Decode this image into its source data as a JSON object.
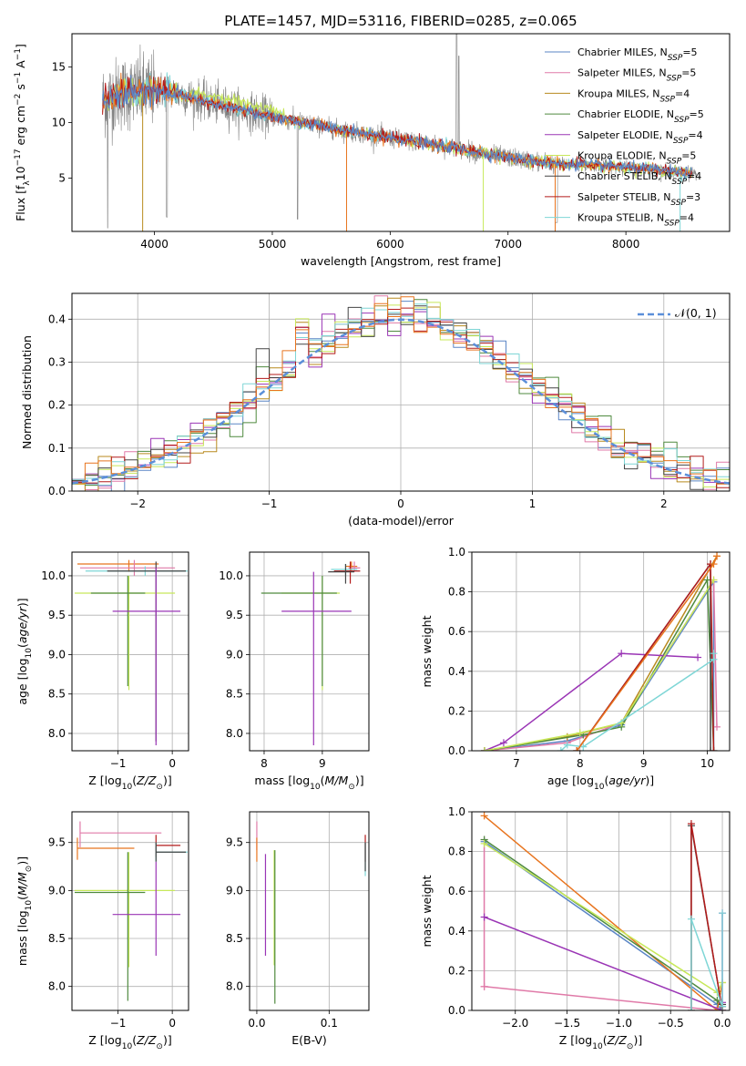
{
  "title": "PLATE=1457, MJD=53116, FIBERID=0285, z=0.065",
  "colors": {
    "Chabrier MILES": "#5b86c6",
    "Salpeter MILES": "#e07aa8",
    "Kroupa MILES": "#b88a1e",
    "Chabrier ELODIE": "#4f8a3f",
    "Salpeter ELODIE": "#9a35b5",
    "Kroupa ELODIE": "#c7e85a",
    "Chabrier STELIB": "#444444",
    "Salpeter STELIB": "#b31b1b",
    "Kroupa STELIB": "#7ed6d6",
    "orange": "#e8741e",
    "data": "#808080",
    "normal": "#5b8fd9"
  },
  "chart_data": [
    {
      "id": "spectrum",
      "type": "line",
      "xlabel": "wavelength [Angstrom, rest frame]",
      "ylabel": "Flux [f_λ10^-17 erg cm^-2 s^-1 A^-1]",
      "xlim": [
        3300,
        8880
      ],
      "ylim": [
        0.2,
        18
      ],
      "xticks": [
        4000,
        5000,
        6000,
        7000,
        8000
      ],
      "yticks": [
        5,
        10,
        15
      ],
      "grid": false,
      "legend": "top-right",
      "legend_entries": [
        {
          "key": "Chabrier MILES",
          "label": "Chabrier MILES, N",
          "sub": "SSP",
          "tail": "=5"
        },
        {
          "key": "Salpeter MILES",
          "label": "Salpeter MILES, N",
          "sub": "SSP",
          "tail": "=5"
        },
        {
          "key": "Kroupa MILES",
          "label": "Kroupa MILES, N",
          "sub": "SSP",
          "tail": "=4"
        },
        {
          "key": "Chabrier ELODIE",
          "label": "Chabrier ELODIE, N",
          "sub": "SSP",
          "tail": "=5"
        },
        {
          "key": "Salpeter ELODIE",
          "label": "Salpeter ELODIE, N",
          "sub": "SSP",
          "tail": "=4"
        },
        {
          "key": "Kroupa ELODIE",
          "label": "Kroupa ELODIE, N",
          "sub": "SSP",
          "tail": "=5"
        },
        {
          "key": "Chabrier STELIB",
          "label": "Chabrier STELIB, N",
          "sub": "SSP",
          "tail": "=4"
        },
        {
          "key": "Salpeter STELIB",
          "label": "Salpeter STELIB, N",
          "sub": "SSP",
          "tail": "=3"
        },
        {
          "key": "Kroupa STELIB",
          "label": "Kroupa STELIB, N",
          "sub": "SSP",
          "tail": "=4"
        }
      ],
      "continuum": [
        [
          3560,
          12.0
        ],
        [
          3700,
          12.6
        ],
        [
          3850,
          12.8
        ],
        [
          4000,
          12.9
        ],
        [
          4100,
          12.9
        ],
        [
          4300,
          12.3
        ],
        [
          4500,
          11.7
        ],
        [
          4700,
          11.3
        ],
        [
          5000,
          10.5
        ],
        [
          5300,
          9.9
        ],
        [
          5600,
          9.3
        ],
        [
          5900,
          8.8
        ],
        [
          6200,
          8.3
        ],
        [
          6500,
          7.8
        ],
        [
          6800,
          7.2
        ],
        [
          7100,
          6.7
        ],
        [
          7400,
          6.3
        ],
        [
          7700,
          6.2
        ],
        [
          8000,
          6.0
        ],
        [
          8300,
          5.7
        ],
        [
          8600,
          5.4
        ]
      ]
    },
    {
      "id": "residuals",
      "type": "line",
      "xlabel": "(data-model)/error",
      "ylabel": "Normed distribution",
      "xlim": [
        -2.5,
        2.5
      ],
      "ylim": [
        0,
        0.46
      ],
      "xticks": [
        -2,
        -1,
        0,
        1,
        2
      ],
      "yticks": [
        0.0,
        0.1,
        0.2,
        0.3,
        0.4
      ],
      "grid": true,
      "legend": "top-right",
      "legend_label": "𝒩(0, 1)",
      "series": [
        {
          "name": "normal",
          "function": "N(0,1)"
        }
      ]
    },
    {
      "id": "age-Z",
      "type": "scatter",
      "xlabel": "Z [log10(Z/Z⊙)]",
      "ylabel": "age [log10(age/yr)]",
      "xlim": [
        -1.85,
        0.3
      ],
      "ylim": [
        7.78,
        10.3
      ],
      "xticks": [
        -1,
        0
      ],
      "yticks": [
        8.0,
        8.5,
        9.0,
        9.5,
        10.0
      ],
      "grid": true,
      "errorbars": [
        {
          "c": "orange",
          "x": -0.8,
          "y": 10.15,
          "xl": -1.75,
          "xh": -0.25,
          "yl": 10.05,
          "yh": 10.2
        },
        {
          "c": "Salpeter MILES",
          "x": -0.7,
          "y": 10.1,
          "xl": -1.7,
          "xh": 0.05,
          "yl": 10.0,
          "yh": 10.2
        },
        {
          "c": "Kroupa STELIB",
          "x": -0.5,
          "y": 10.06,
          "xl": -1.6,
          "xh": 0.28,
          "yl": 10.0,
          "yh": 10.12
        },
        {
          "c": "Chabrier STELIB",
          "x": -0.3,
          "y": 10.06,
          "xl": -1.2,
          "xh": 0.25,
          "yl": 7.9,
          "yh": 10.18
        },
        {
          "c": "Kroupa ELODIE",
          "x": -0.8,
          "y": 9.78,
          "xl": -1.8,
          "xh": 0.05,
          "yl": 8.55,
          "yh": 10.0
        },
        {
          "c": "Chabrier ELODIE",
          "x": -0.82,
          "y": 9.78,
          "xl": -1.5,
          "xh": -0.5,
          "yl": 8.6,
          "yh": 10.0
        },
        {
          "c": "Salpeter ELODIE",
          "x": -0.3,
          "y": 9.55,
          "xl": -1.1,
          "xh": 0.15,
          "yl": 7.85,
          "yh": 10.1
        }
      ]
    },
    {
      "id": "age-mass",
      "type": "scatter",
      "xlabel": "mass [log10(M/M⊙)]",
      "ylabel": "",
      "xlim": [
        7.75,
        9.8
      ],
      "ylim": [
        7.78,
        10.3
      ],
      "xticks": [
        8,
        9
      ],
      "yticks": [
        8.0,
        8.5,
        9.0,
        9.5,
        10.0
      ],
      "grid": true,
      "errorbars": [
        {
          "c": "orange",
          "x": 9.5,
          "y": 10.12,
          "xl": 9.4,
          "xh": 9.6,
          "yl": 10.05,
          "yh": 10.18
        },
        {
          "c": "Salpeter MILES",
          "x": 9.55,
          "y": 10.1,
          "xl": 9.45,
          "xh": 9.65,
          "yl": 10.05,
          "yh": 10.18
        },
        {
          "c": "Salpeter STELIB",
          "x": 9.48,
          "y": 10.06,
          "xl": 9.2,
          "xh": 9.65,
          "yl": 9.9,
          "yh": 10.18
        },
        {
          "c": "Kroupa STELIB",
          "x": 9.4,
          "y": 10.08,
          "xl": 9.15,
          "xh": 9.6,
          "yl": 10.0,
          "yh": 10.15
        },
        {
          "c": "Chabrier STELIB",
          "x": 9.4,
          "y": 10.05,
          "xl": 9.1,
          "xh": 9.55,
          "yl": 9.9,
          "yh": 10.15
        },
        {
          "c": "Kroupa ELODIE",
          "x": 9.0,
          "y": 9.78,
          "xl": 8.3,
          "xh": 9.3,
          "yl": 8.55,
          "yh": 10.0
        },
        {
          "c": "Chabrier ELODIE",
          "x": 9.0,
          "y": 9.78,
          "xl": 7.95,
          "xh": 9.25,
          "yl": 8.6,
          "yh": 10.0
        },
        {
          "c": "Salpeter ELODIE",
          "x": 8.85,
          "y": 9.55,
          "xl": 8.3,
          "xh": 9.5,
          "yl": 7.85,
          "yh": 10.05
        }
      ]
    },
    {
      "id": "mass-weight-age",
      "type": "line",
      "xlabel": "age [log10(age/yr)]",
      "ylabel": "mass weight",
      "xlim": [
        6.3,
        10.35
      ],
      "ylim": [
        0,
        1
      ],
      "xticks": [
        7,
        8,
        9,
        10
      ],
      "yticks": [
        0.0,
        0.2,
        0.4,
        0.6,
        0.8,
        1.0
      ],
      "grid": true,
      "series": [
        {
          "name": "Chabrier MILES",
          "x": [
            6.5,
            7.8,
            8.65,
            10.1,
            10.1
          ],
          "y": [
            0.0,
            0.05,
            0.13,
            0.85,
            0.0
          ]
        },
        {
          "name": "Salpeter MILES",
          "x": [
            6.5,
            7.8,
            8.65,
            10.1,
            10.15
          ],
          "y": [
            0.0,
            0.04,
            0.14,
            0.86,
            0.12
          ]
        },
        {
          "name": "Kroupa MILES",
          "x": [
            6.5,
            7.8,
            8.65,
            10.15
          ],
          "y": [
            0.0,
            0.07,
            0.14,
            0.98
          ]
        },
        {
          "name": "Chabrier ELODIE",
          "x": [
            6.5,
            8.05,
            8.65,
            10.0,
            10.1
          ],
          "y": [
            0.0,
            0.08,
            0.12,
            0.86,
            0.0
          ]
        },
        {
          "name": "Salpeter ELODIE",
          "x": [
            6.5,
            6.8,
            8.65,
            9.85
          ],
          "y": [
            0.0,
            0.04,
            0.49,
            0.47
          ]
        },
        {
          "name": "Kroupa ELODIE",
          "x": [
            6.5,
            8.0,
            8.65,
            10.1
          ],
          "y": [
            0.0,
            0.09,
            0.14,
            0.86
          ]
        },
        {
          "name": "Chabrier STELIB",
          "x": [
            7.95,
            10.05,
            10.05
          ],
          "y": [
            0.0,
            0.94,
            0.0
          ]
        },
        {
          "name": "Salpeter STELIB",
          "x": [
            7.95,
            10.05,
            10.1
          ],
          "y": [
            0.0,
            0.94,
            0.0
          ]
        },
        {
          "name": "Kroupa STELIB",
          "x": [
            7.7,
            7.8,
            8.05,
            10.1,
            10.1
          ],
          "y": [
            0.0,
            0.03,
            0.02,
            0.46,
            0.49
          ]
        },
        {
          "name": "orange",
          "x": [
            7.95,
            10.1,
            10.15
          ],
          "y": [
            0.0,
            0.94,
            0.98
          ]
        }
      ]
    },
    {
      "id": "mass-Z",
      "type": "scatter",
      "xlabel": "Z [log10(Z/Z⊙)]",
      "ylabel": "mass [log10(M/M⊙)]",
      "xlim": [
        -1.85,
        0.3
      ],
      "ylim": [
        7.75,
        9.82
      ],
      "xticks": [
        -1,
        0
      ],
      "yticks": [
        8.0,
        8.5,
        9.0,
        9.5
      ],
      "grid": true,
      "errorbars": [
        {
          "c": "Salpeter MILES",
          "x": -1.7,
          "y": 9.6,
          "xl": -1.7,
          "xh": -0.2,
          "yl": 9.45,
          "yh": 9.72
        },
        {
          "c": "orange",
          "x": -1.75,
          "y": 9.44,
          "xl": -1.75,
          "xh": -0.7,
          "yl": 9.32,
          "yh": 9.55
        },
        {
          "c": "Salpeter STELIB",
          "x": -0.3,
          "y": 9.47,
          "xl": -0.3,
          "xh": 0.15,
          "yl": 9.35,
          "yh": 9.58
        },
        {
          "c": "Kroupa STELIB",
          "x": -0.3,
          "y": 9.4,
          "xl": -0.3,
          "xh": 0.28,
          "yl": 9.3,
          "yh": 9.5
        },
        {
          "c": "Chabrier STELIB",
          "x": -0.3,
          "y": 9.4,
          "xl": -0.3,
          "xh": 0.25,
          "yl": 9.3,
          "yh": 9.5
        },
        {
          "c": "Kroupa ELODIE",
          "x": -0.8,
          "y": 9.0,
          "xl": -1.8,
          "xh": 0.05,
          "yl": 8.2,
          "yh": 9.4
        },
        {
          "c": "Chabrier ELODIE",
          "x": -0.82,
          "y": 8.98,
          "xl": -1.8,
          "xh": -0.5,
          "yl": 7.85,
          "yh": 9.4
        },
        {
          "c": "Salpeter ELODIE",
          "x": -0.3,
          "y": 8.75,
          "xl": -1.1,
          "xh": 0.15,
          "yl": 8.32,
          "yh": 9.3
        }
      ]
    },
    {
      "id": "mass-ebv",
      "type": "scatter",
      "xlabel": "E(B-V)",
      "ylabel": "",
      "xlim": [
        -0.01,
        0.155
      ],
      "ylim": [
        7.75,
        9.82
      ],
      "xticks": [
        0.0,
        0.1
      ],
      "yticks": [
        8.0,
        8.5,
        9.0,
        9.5
      ],
      "grid": true,
      "errorbars": [
        {
          "c": "Salpeter MILES",
          "x": 0.0,
          "y": 9.6,
          "yl": 9.42,
          "yh": 9.72
        },
        {
          "c": "orange",
          "x": 0.0,
          "y": 9.44,
          "yl": 9.3,
          "yh": 9.55
        },
        {
          "c": "Salpeter ELODIE",
          "x": 0.012,
          "y": 8.75,
          "yl": 8.32,
          "yh": 9.38
        },
        {
          "c": "Kroupa ELODIE",
          "x": 0.024,
          "y": 9.0,
          "yl": 8.22,
          "yh": 9.42
        },
        {
          "c": "Chabrier ELODIE",
          "x": 0.025,
          "y": 8.98,
          "yl": 7.82,
          "yh": 9.42
        },
        {
          "c": "Salpeter STELIB",
          "x": 0.15,
          "y": 9.45,
          "yl": 9.3,
          "yh": 9.58
        },
        {
          "c": "Kroupa STELIB",
          "x": 0.15,
          "y": 9.38,
          "yl": 9.15,
          "yh": 9.5
        },
        {
          "c": "Chabrier STELIB",
          "x": 0.15,
          "y": 9.4,
          "yl": 9.2,
          "yh": 9.5
        }
      ]
    },
    {
      "id": "mass-weight-Z",
      "type": "line",
      "xlabel": "Z [log10(Z/Z⊙)]",
      "ylabel": "mass weight",
      "xlim": [
        -2.42,
        0.07
      ],
      "ylim": [
        0,
        1
      ],
      "xticks": [
        -2.0,
        -1.5,
        -1.0,
        -0.5,
        0.0
      ],
      "yticks": [
        0.0,
        0.2,
        0.4,
        0.6,
        0.8,
        1.0
      ],
      "grid": true,
      "series": [
        {
          "name": "Salpeter MILES",
          "x": [
            -2.3,
            -2.3,
            -2.3,
            -0.05,
            0.0
          ],
          "y": [
            0.12,
            0.86,
            0.12,
            0.0,
            0.02
          ]
        },
        {
          "name": "Chabrier MILES",
          "x": [
            -2.3,
            -0.05,
            0.0
          ],
          "y": [
            0.85,
            0.03,
            0.0
          ]
        },
        {
          "name": "orange",
          "x": [
            -2.3,
            -0.05,
            0.0
          ],
          "y": [
            0.98,
            0.0,
            0.14
          ]
        },
        {
          "name": "Chabrier ELODIE",
          "x": [
            -2.3,
            -0.05,
            0.0
          ],
          "y": [
            0.86,
            0.05,
            0.02
          ]
        },
        {
          "name": "Kroupa ELODIE",
          "x": [
            -2.3,
            -0.05,
            0.0
          ],
          "y": [
            0.84,
            0.09,
            0.14
          ]
        },
        {
          "name": "Salpeter ELODIE",
          "x": [
            -2.3,
            0.0,
            0.0,
            0.0
          ],
          "y": [
            0.47,
            0.0,
            0.04,
            0.49
          ]
        },
        {
          "name": "Chabrier STELIB",
          "x": [
            -0.3,
            -0.3,
            0.0,
            0.0
          ],
          "y": [
            0.0,
            0.93,
            0.0,
            0.03
          ]
        },
        {
          "name": "Salpeter STELIB",
          "x": [
            -0.3,
            -0.3,
            0.0
          ],
          "y": [
            0.0,
            0.94,
            0.0
          ]
        },
        {
          "name": "Kroupa STELIB",
          "x": [
            -0.3,
            -0.3,
            0.0,
            0.0
          ],
          "y": [
            0.0,
            0.46,
            0.02,
            0.49
          ]
        }
      ]
    }
  ]
}
